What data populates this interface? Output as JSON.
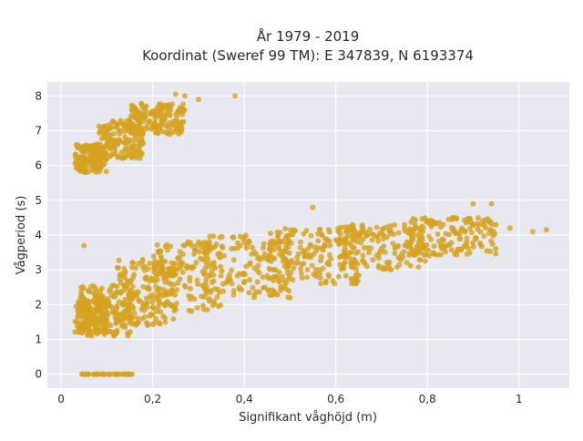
{
  "chart_data": {
    "type": "scatter",
    "title": "År 1979 - 2019",
    "subtitle": "Koordinat (Sweref 99 TM): E 347839, N 6193374",
    "xlabel": "Signifikant våghöjd (m)",
    "ylabel": "Vågperiod (s)",
    "xlim": [
      -0.03,
      1.11
    ],
    "ylim": [
      -0.4,
      8.4
    ],
    "x_ticks": [
      0,
      0.2,
      0.4,
      0.6,
      0.8,
      1.0
    ],
    "x_tick_labels": [
      "0",
      "0,2",
      "0,4",
      "0,6",
      "0,8",
      "1"
    ],
    "y_ticks": [
      0,
      1,
      2,
      3,
      4,
      5,
      6,
      7,
      8
    ],
    "y_tick_labels": [
      "0",
      "1",
      "2",
      "3",
      "4",
      "5",
      "6",
      "7",
      "8"
    ],
    "grid": true,
    "marker_color": "#d4a21f",
    "plot_background": "#e8e8f0",
    "grid_color": "#ffffff",
    "series": [
      {
        "clusters": [
          {
            "x": [
              0.03,
              0.1
            ],
            "y": [
              5.8,
              6.6
            ]
          },
          {
            "x": [
              0.08,
              0.18
            ],
            "y": [
              6.2,
              7.3
            ]
          },
          {
            "x": [
              0.15,
              0.27
            ],
            "y": [
              6.9,
              7.8
            ]
          },
          {
            "x": [
              0.04,
              0.16
            ],
            "y": [
              1.1,
              2.6
            ]
          },
          {
            "x": [
              0.03,
              0.1
            ],
            "y": [
              1.2,
              2.2
            ]
          },
          {
            "x": [
              0.12,
              0.25
            ],
            "y": [
              1.4,
              3.3
            ]
          },
          {
            "x": [
              0.2,
              0.35
            ],
            "y": [
              1.8,
              3.8
            ]
          },
          {
            "x": [
              0.3,
              0.5
            ],
            "y": [
              2.2,
              4.0
            ]
          },
          {
            "x": [
              0.45,
              0.65
            ],
            "y": [
              2.6,
              4.2
            ]
          },
          {
            "x": [
              0.6,
              0.8
            ],
            "y": [
              3.0,
              4.3
            ]
          },
          {
            "x": [
              0.75,
              0.95
            ],
            "y": [
              3.4,
              4.5
            ]
          }
        ],
        "outliers": [
          [
            0.05,
            3.7
          ],
          [
            0.38,
            8.0
          ],
          [
            0.25,
            8.05
          ],
          [
            0.27,
            8.0
          ],
          [
            0.3,
            7.9
          ],
          [
            0.9,
            4.9
          ],
          [
            0.94,
            4.9
          ],
          [
            1.06,
            4.15
          ],
          [
            1.03,
            4.1
          ],
          [
            0.98,
            4.2
          ],
          [
            0.5,
            2.2
          ],
          [
            0.55,
            4.8
          ],
          [
            0.75,
            4.3
          ],
          [
            0.86,
            4.5
          ],
          [
            0.92,
            4.4
          ]
        ],
        "zero_band": {
          "x": [
            0.04,
            0.16
          ],
          "y": 0
        }
      }
    ]
  }
}
